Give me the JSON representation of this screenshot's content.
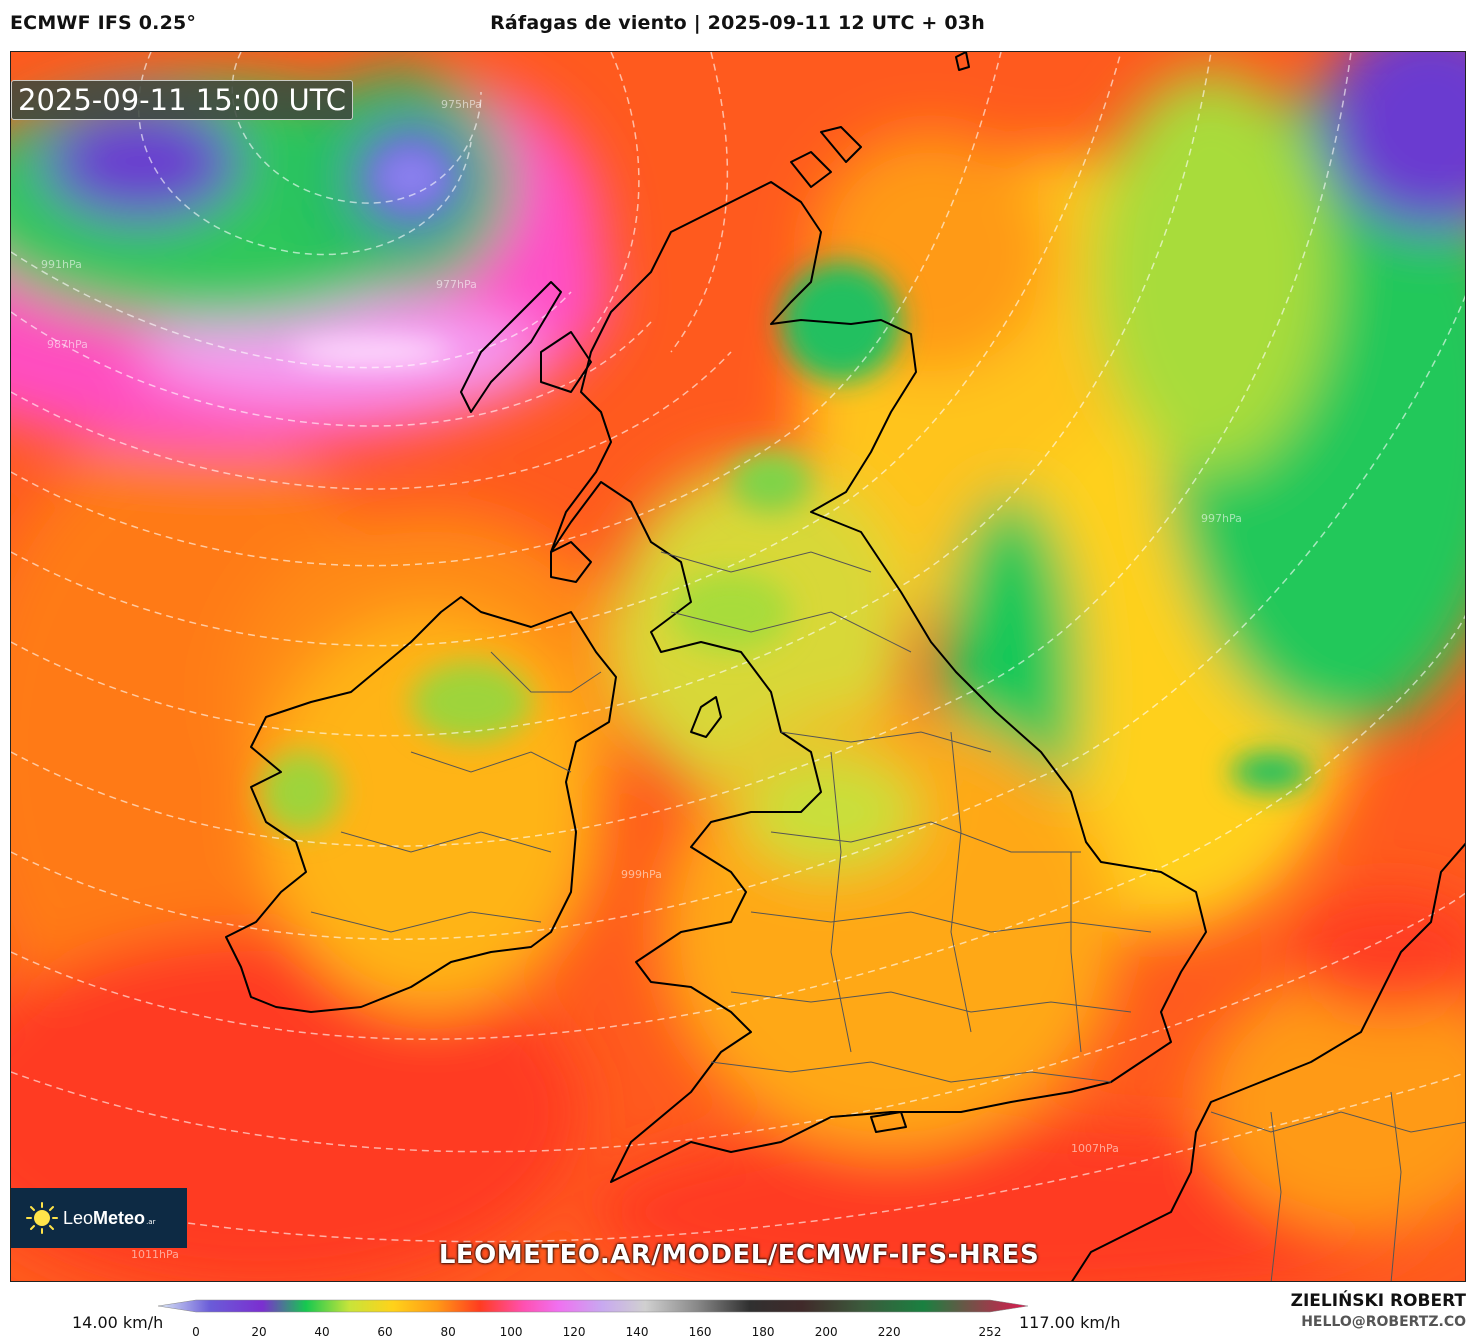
{
  "header": {
    "model": "ECMWF IFS 0.25°",
    "title": "Ráfagas de viento | 2025-09-11 12 UTC + 03h"
  },
  "map": {
    "valid_time": "2025-09-11 15:00 UTC",
    "watermark": "LEOMETEO.AR/MODEL/ECMWF-IFS-HRES",
    "logo": {
      "brand_light": "Leo",
      "brand_bold": "Meteo",
      "suffix": ".ar"
    },
    "isobar_labels": [
      "975hPa",
      "977hPa",
      "987hPa",
      "991hPa",
      "997hPa",
      "999hPa",
      "1007hPa",
      "1011hPa"
    ]
  },
  "legend": {
    "min_label": "14.00 km/h",
    "max_label": "117.00 km/h",
    "ticks": [
      "0",
      "20",
      "40",
      "60",
      "80",
      "100",
      "120",
      "140",
      "160",
      "180",
      "200",
      "220",
      "252"
    ],
    "colors": [
      "#dbe8f6",
      "#6a5cd8",
      "#7b2fd0",
      "#16c850",
      "#c8e43a",
      "#ffd21a",
      "#ff9a16",
      "#ff3c20",
      "#ff50b0",
      "#f070f0",
      "#c8a8f0",
      "#d0d0d0",
      "#888888",
      "#303030",
      "#402a2a",
      "#3c5a3c",
      "#1a8040",
      "#e01850"
    ]
  },
  "author": {
    "name": "ZIELIŃSKI ROBERT",
    "email": "HELLO@ROBERTZ.CO"
  }
}
